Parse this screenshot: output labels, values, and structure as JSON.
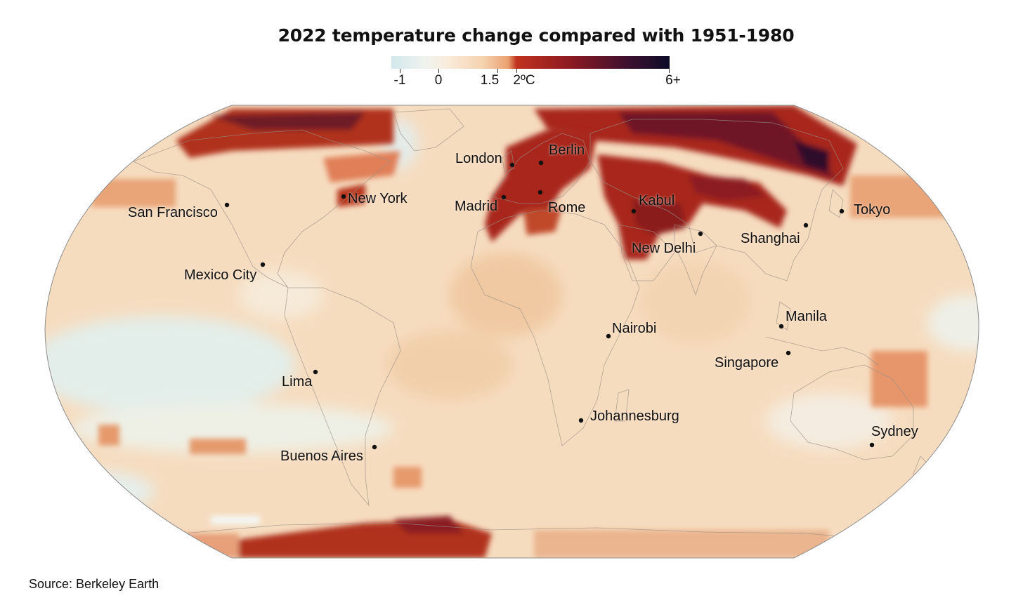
{
  "title": "2022 temperature change compared with 1951-1980",
  "legend": {
    "ticks": [
      "-1",
      "0",
      "1.5",
      "2ºC",
      "6+"
    ],
    "colors": [
      "#d7ebee",
      "#f2f4ee",
      "#f7e6d2",
      "#f2c8a1",
      "#e89968",
      "#b8261a",
      "#7a1a23",
      "#3a0f2c",
      "#0d0d2a"
    ]
  },
  "cities": [
    {
      "name": "San Francisco"
    },
    {
      "name": "New York"
    },
    {
      "name": "Mexico City"
    },
    {
      "name": "Lima"
    },
    {
      "name": "Buenos Aires"
    },
    {
      "name": "London"
    },
    {
      "name": "Berlin"
    },
    {
      "name": "Madrid"
    },
    {
      "name": "Rome"
    },
    {
      "name": "Kabul"
    },
    {
      "name": "New Delhi"
    },
    {
      "name": "Shanghai"
    },
    {
      "name": "Tokyo"
    },
    {
      "name": "Manila"
    },
    {
      "name": "Singapore"
    },
    {
      "name": "Nairobi"
    },
    {
      "name": "Johannesburg"
    },
    {
      "name": "Sydney"
    }
  ],
  "source": "Source: Berkeley Earth"
}
